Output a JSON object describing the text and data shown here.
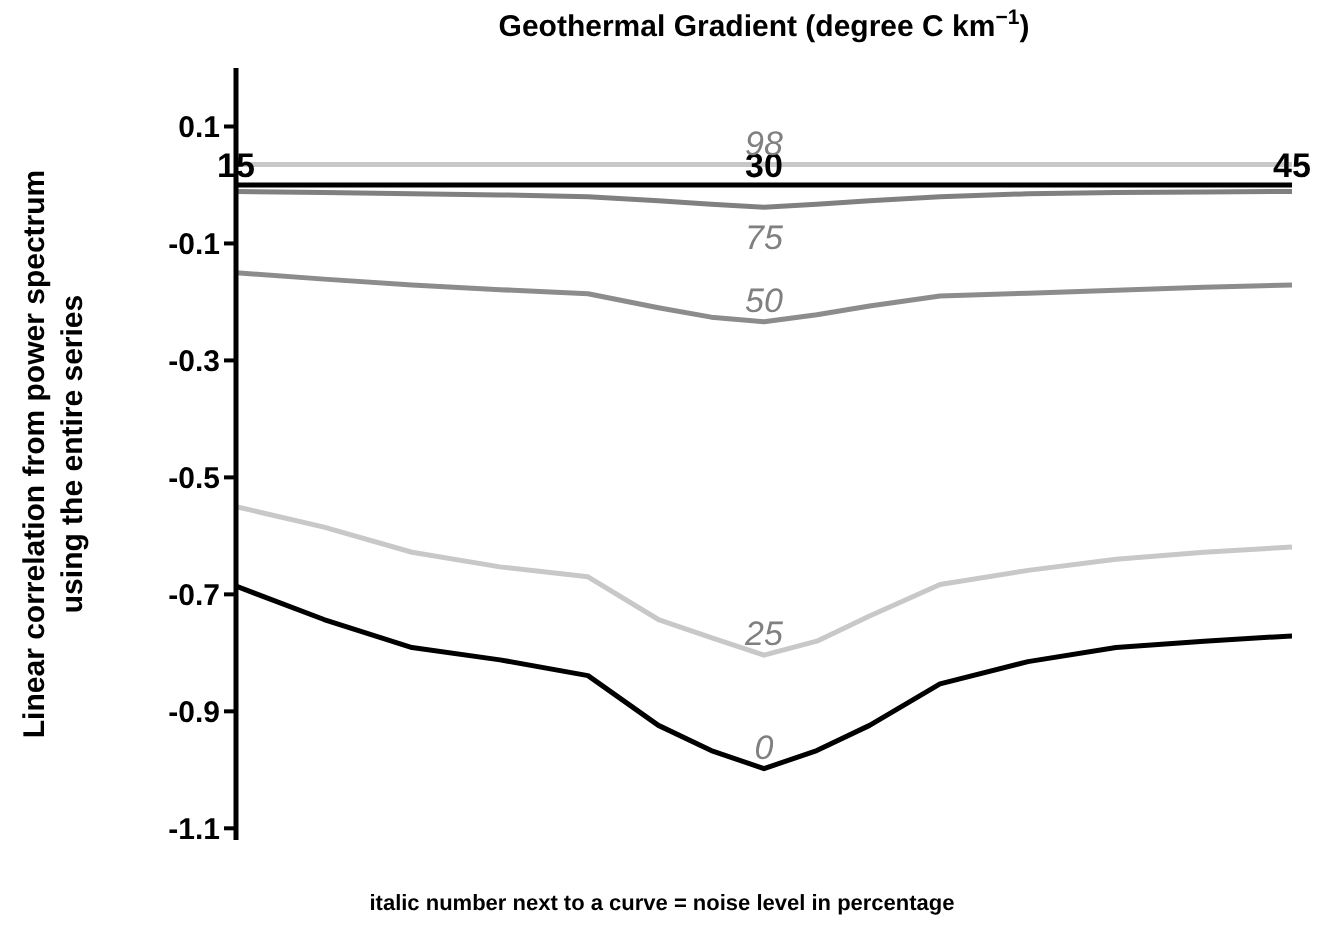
{
  "chart_data": {
    "type": "line",
    "xlabel": "Geothermal Gradient (degree C km$^{−1}$)",
    "ylabel": "Linear correlation from power spectrum\nusing the entire series",
    "x": [
      15,
      17.5,
      20,
      22.5,
      25,
      27,
      28.5,
      30,
      31.5,
      33,
      35,
      37.5,
      40,
      42.5,
      45
    ],
    "series": [
      {
        "name": "98",
        "color": "#c8c8c8",
        "values": [
          0.035,
          0.035,
          0.035,
          0.035,
          0.035,
          0.035,
          0.035,
          0.035,
          0.035,
          0.035,
          0.035,
          0.035,
          0.035,
          0.035,
          0.035
        ]
      },
      {
        "name": "75",
        "color": "#808080",
        "values": [
          -0.011,
          -0.013,
          -0.015,
          -0.017,
          -0.02,
          -0.027,
          -0.033,
          -0.038,
          -0.033,
          -0.027,
          -0.02,
          -0.015,
          -0.013,
          -0.012,
          -0.011
        ]
      },
      {
        "name": "50",
        "color": "#8c8c8c",
        "values": [
          -0.15,
          -0.161,
          -0.171,
          -0.179,
          -0.186,
          -0.21,
          -0.226,
          -0.234,
          -0.222,
          -0.207,
          -0.19,
          -0.185,
          -0.18,
          -0.175,
          -0.171
        ]
      },
      {
        "name": "25",
        "color": "#c8c8c8",
        "values": [
          -0.55,
          -0.585,
          -0.628,
          -0.653,
          -0.67,
          -0.743,
          -0.774,
          -0.804,
          -0.78,
          -0.737,
          -0.683,
          -0.659,
          -0.64,
          -0.628,
          -0.619
        ]
      },
      {
        "name": "0",
        "color": "#000000",
        "values": [
          -0.686,
          -0.743,
          -0.791,
          -0.812,
          -0.839,
          -0.924,
          -0.967,
          -0.998,
          -0.967,
          -0.924,
          -0.853,
          -0.815,
          -0.791,
          -0.78,
          -0.771
        ]
      }
    ],
    "xlim": [
      15,
      45
    ],
    "xticks": [
      15,
      30,
      45
    ],
    "ylim": [
      -1.12,
      0.2
    ],
    "yticks": [
      0.1,
      -0.1,
      -0.3,
      -0.5,
      -0.7,
      -0.9,
      -1.1
    ],
    "grid": false,
    "legend": false,
    "marker": "none",
    "line_style": "solid",
    "annotations": [
      "italic number next to a curve = noise level in percentage"
    ]
  }
}
